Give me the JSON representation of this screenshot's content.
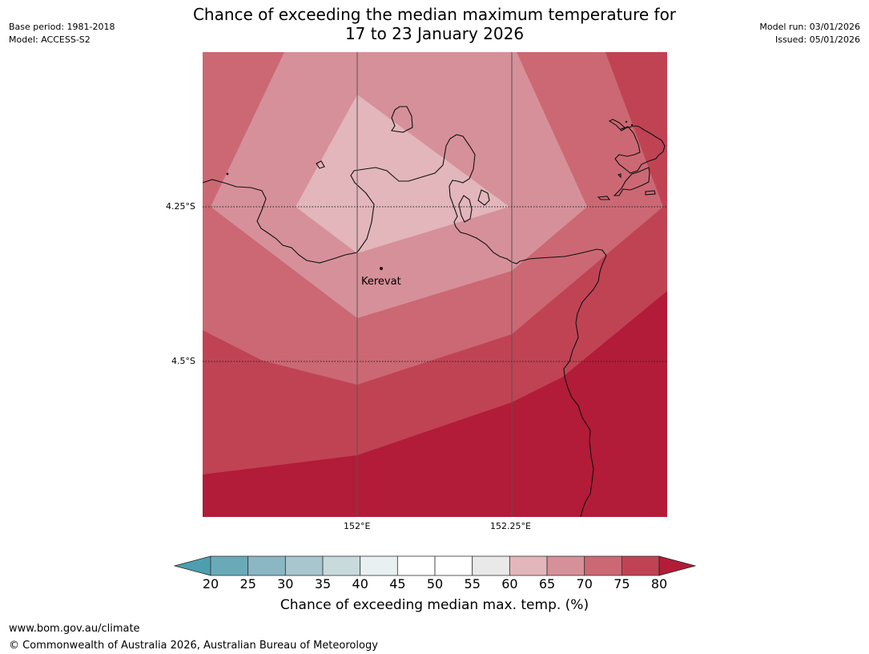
{
  "header": {
    "title_line1": "Chance of exceeding the median maximum temperature for",
    "title_line2": "17 to 23 January 2026",
    "base_period": "Base period: 1981-2018",
    "model": "Model: ACCESS-S2",
    "model_run": "Model run: 03/01/2026",
    "issued": "Issued: 05/01/2026"
  },
  "map": {
    "place_label": "Kerevat",
    "lat_labels": [
      "4.25°S",
      "4.5°S"
    ],
    "lon_labels": [
      "152°E",
      "152.25°E"
    ]
  },
  "colorbar": {
    "label": "Chance of exceeding median max. temp. (%)",
    "ticks": [
      "20",
      "25",
      "30",
      "35",
      "40",
      "45",
      "50",
      "55",
      "60",
      "65",
      "70",
      "75",
      "80"
    ],
    "colors": [
      "#6aaab8",
      "#8bb6c3",
      "#a8c6cd",
      "#c9dadd",
      "#e9f0f1",
      "#ffffff",
      "#ffffff",
      "#e9e9e9",
      "#e2b6bb",
      "#d6909a",
      "#cb6874",
      "#c04354"
    ],
    "under_color": "#4d9fb0",
    "over_color": "#b21c38"
  },
  "footer": {
    "url": "www.bom.gov.au/climate",
    "copyright": "© Commonwealth of Australia 2026, Australian Bureau of Meteorology"
  }
}
